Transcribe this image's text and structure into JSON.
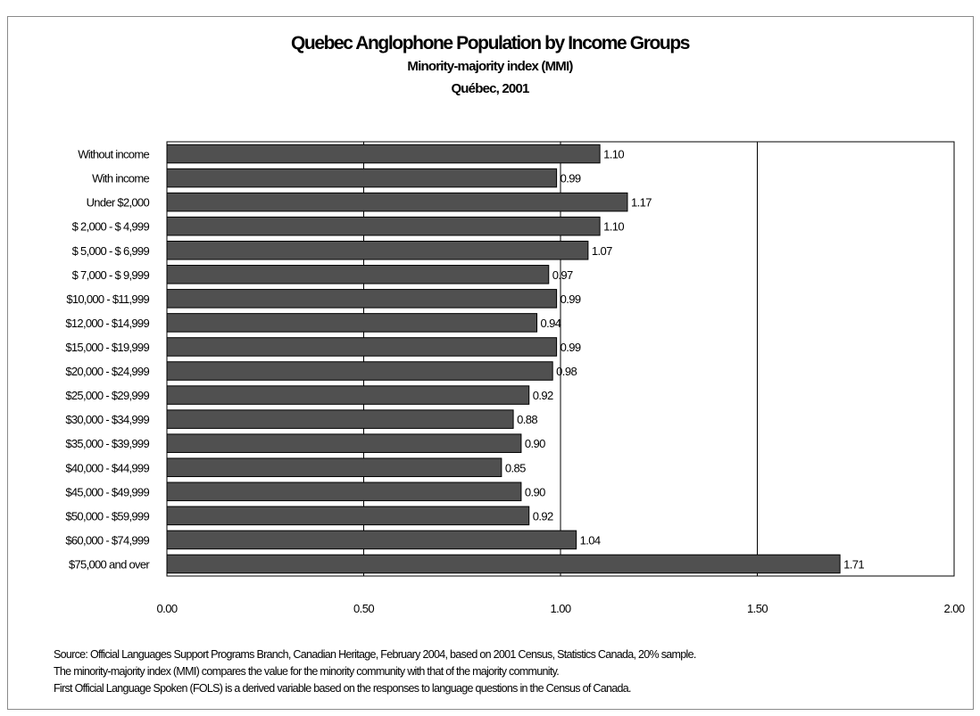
{
  "chart_data": {
    "type": "bar",
    "orientation": "horizontal",
    "title": "Quebec Anglophone Population by Income Groups",
    "subtitle": [
      "Minority-majority index (MMI)",
      "Québec, 2001"
    ],
    "xlabel": "",
    "ylabel": "",
    "xlim": [
      0,
      2
    ],
    "xticks": [
      "0.00",
      "0.50",
      "1.00",
      "1.50",
      "2.00"
    ],
    "grid": true,
    "legend": "none",
    "bar_color": "#505050",
    "categories": [
      "Without income",
      "With income",
      "Under $2,000",
      "$ 2,000 - $ 4,999",
      "$ 5,000 - $ 6,999",
      "$ 7,000 - $ 9,999",
      "$10,000 - $11,999",
      "$12,000 - $14,999",
      "$15,000 - $19,999",
      "$20,000 - $24,999",
      "$25,000 - $29,999",
      "$30,000 - $34,999",
      "$35,000 - $39,999",
      "$40,000 - $44,999",
      "$45,000 - $49,999",
      "$50,000 - $59,999",
      "$60,000 - $74,999",
      "$75,000 and over"
    ],
    "values": [
      1.1,
      0.99,
      1.17,
      1.1,
      1.07,
      0.97,
      0.99,
      0.94,
      0.99,
      0.98,
      0.92,
      0.88,
      0.9,
      0.85,
      0.9,
      0.92,
      1.04,
      1.71
    ],
    "value_labels": [
      "1.10",
      "0.99",
      "1.17",
      "1.10",
      "1.07",
      "0.97",
      "0.99",
      "0.94",
      "0.99",
      "0.98",
      "0.92",
      "0.88",
      "0.90",
      "0.85",
      "0.90",
      "0.92",
      "1.04",
      "1.71"
    ]
  },
  "notes": [
    "Source:  Official Languages Support Programs Branch, Canadian Heritage, February 2004, based on 2001 Census, Statistics Canada, 20% sample.",
    "The minority-majority index (MMI) compares the value for the minority community with that of the majority community.",
    "First Official Language Spoken (FOLS) is a derived variable based on the responses to language questions in the Census of Canada."
  ]
}
